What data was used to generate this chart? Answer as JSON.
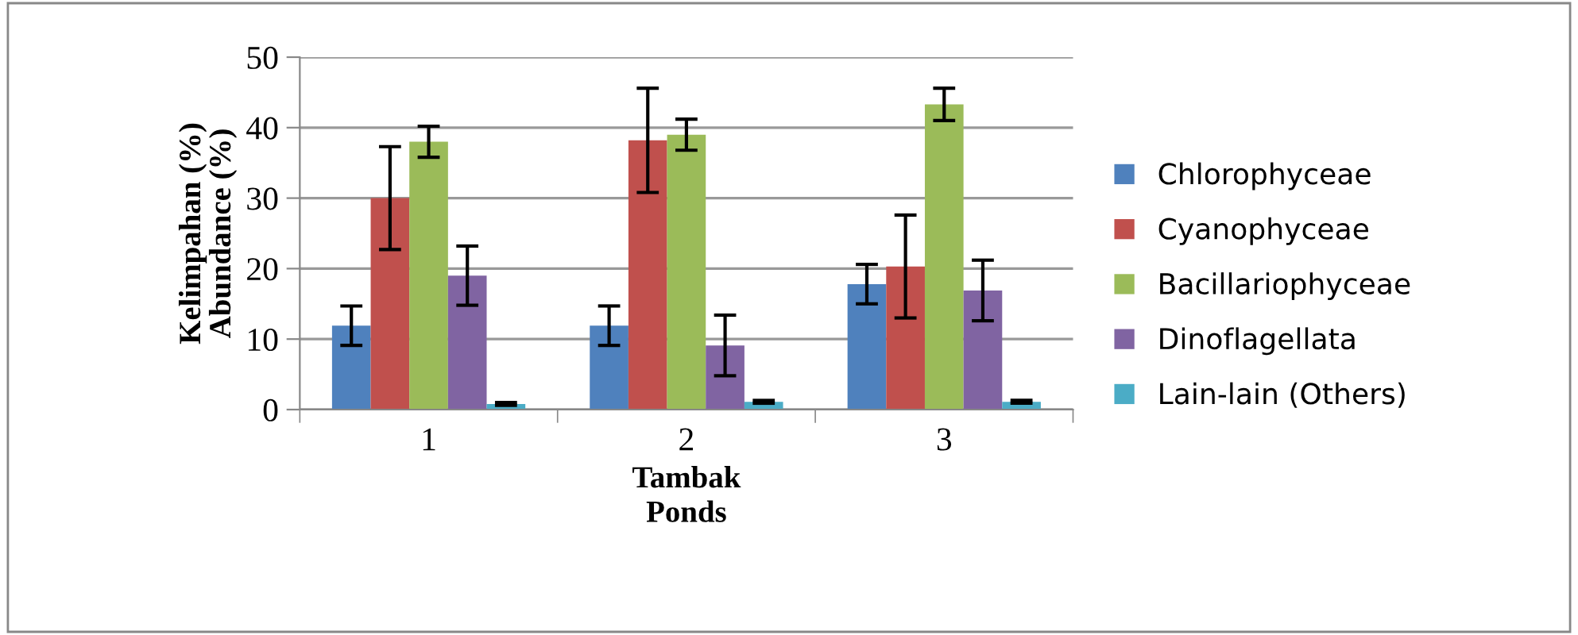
{
  "chart_data": {
    "type": "bar",
    "xlabel": "Tambak\nPonds",
    "ylabel": "Kelimpahan (%)\nAbundance (%)",
    "categories": [
      "1",
      "2",
      "3"
    ],
    "series": [
      {
        "name": "Chlorophyceae",
        "color": "#4f81bd",
        "values": [
          11.9,
          11.9,
          17.8
        ],
        "errors": [
          2.8,
          2.8,
          2.8
        ]
      },
      {
        "name": "Cyanophyceae",
        "color": "#c0504d",
        "values": [
          30.0,
          38.2,
          20.3
        ],
        "errors": [
          7.3,
          7.4,
          7.3
        ]
      },
      {
        "name": "Bacillariophyceae",
        "color": "#9bbb59",
        "values": [
          38.0,
          39.0,
          43.3
        ],
        "errors": [
          2.2,
          2.2,
          2.3
        ]
      },
      {
        "name": "Dinoflagellata",
        "color": "#8064a2",
        "values": [
          19.0,
          9.1,
          16.9
        ],
        "errors": [
          4.2,
          4.3,
          4.3
        ]
      },
      {
        "name": "Lain-lain (Others)",
        "color": "#4bacc6",
        "values": [
          0.8,
          1.1,
          1.1
        ],
        "errors": [
          0.2,
          0.2,
          0.2
        ]
      }
    ],
    "ylim": [
      0,
      50
    ],
    "yticks": [
      0,
      10,
      20,
      30,
      40,
      50
    ],
    "grid": "y",
    "legend": "right"
  }
}
